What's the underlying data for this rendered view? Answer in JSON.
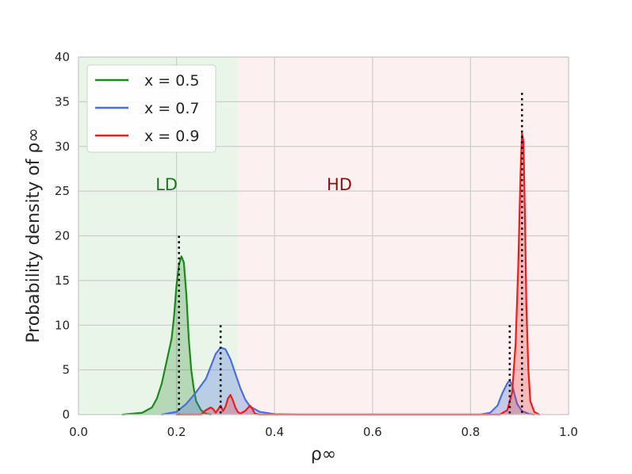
{
  "chart_data": {
    "type": "area",
    "title": "",
    "xlabel": "ρ∞",
    "ylabel": "Probability density of ρ∞",
    "xlim": [
      0.0,
      1.0
    ],
    "ylim": [
      0,
      40
    ],
    "xticks": [
      "0.0",
      "0.2",
      "0.4",
      "0.6",
      "0.8",
      "1.0"
    ],
    "yticks": [
      "0",
      "5",
      "10",
      "15",
      "20",
      "25",
      "30",
      "35",
      "40"
    ],
    "grid": true,
    "legend_position": "top-left",
    "regions": [
      {
        "label": "LD",
        "x_range": [
          0.0,
          0.325
        ],
        "color": "#eaf5ea",
        "label_color": "#1a7a1a"
      },
      {
        "label": "HD",
        "x_range": [
          0.325,
          1.0
        ],
        "color": "#fdf0f0",
        "label_color": "#8b1010"
      }
    ],
    "series": [
      {
        "name": "x = 0.5",
        "color": "#1a8a1a",
        "fill": "rgba(46,139,46,0.28)",
        "points": [
          [
            0.09,
            0
          ],
          [
            0.13,
            0.2
          ],
          [
            0.15,
            0.8
          ],
          [
            0.16,
            1.8
          ],
          [
            0.17,
            3.5
          ],
          [
            0.18,
            6.0
          ],
          [
            0.19,
            8.5
          ],
          [
            0.195,
            11
          ],
          [
            0.2,
            14.5
          ],
          [
            0.205,
            16.8
          ],
          [
            0.21,
            17.7
          ],
          [
            0.215,
            17.0
          ],
          [
            0.22,
            13.5
          ],
          [
            0.225,
            8.5
          ],
          [
            0.23,
            5.0
          ],
          [
            0.235,
            3.0
          ],
          [
            0.24,
            1.5
          ],
          [
            0.25,
            0.5
          ],
          [
            0.26,
            0.1
          ],
          [
            0.27,
            0
          ]
        ]
      },
      {
        "name": "x = 0.7",
        "color": "#4a6fdc",
        "fill": "rgba(74,111,220,0.30)",
        "points": [
          [
            0.17,
            0
          ],
          [
            0.2,
            0.3
          ],
          [
            0.22,
            1.2
          ],
          [
            0.24,
            2.5
          ],
          [
            0.26,
            4.0
          ],
          [
            0.27,
            5.4
          ],
          [
            0.28,
            6.8
          ],
          [
            0.29,
            7.5
          ],
          [
            0.3,
            7.3
          ],
          [
            0.31,
            6.2
          ],
          [
            0.32,
            4.6
          ],
          [
            0.33,
            3.0
          ],
          [
            0.34,
            1.7
          ],
          [
            0.35,
            0.9
          ],
          [
            0.37,
            0.3
          ],
          [
            0.4,
            0.05
          ],
          [
            0.45,
            0
          ],
          [
            0.82,
            0
          ],
          [
            0.84,
            0.2
          ],
          [
            0.855,
            1.0
          ],
          [
            0.865,
            2.4
          ],
          [
            0.875,
            3.5
          ],
          [
            0.88,
            3.8
          ],
          [
            0.885,
            3.3
          ],
          [
            0.89,
            2.2
          ],
          [
            0.895,
            1.2
          ],
          [
            0.905,
            0.4
          ],
          [
            0.92,
            0.05
          ],
          [
            0.93,
            0
          ]
        ]
      },
      {
        "name": "x = 0.9",
        "color": "#ee1c1c",
        "fill": "rgba(238,50,50,0.28)",
        "points": [
          [
            0.2,
            0
          ],
          [
            0.25,
            0
          ],
          [
            0.26,
            0.5
          ],
          [
            0.27,
            0.8
          ],
          [
            0.275,
            0.6
          ],
          [
            0.28,
            0.2
          ],
          [
            0.285,
            0.6
          ],
          [
            0.29,
            1.0
          ],
          [
            0.295,
            0.4
          ],
          [
            0.3,
            0.9
          ],
          [
            0.305,
            1.8
          ],
          [
            0.31,
            2.2
          ],
          [
            0.315,
            1.6
          ],
          [
            0.32,
            0.8
          ],
          [
            0.325,
            0.3
          ],
          [
            0.33,
            0.1
          ],
          [
            0.34,
            0.4
          ],
          [
            0.35,
            1.0
          ],
          [
            0.355,
            0.6
          ],
          [
            0.36,
            0.1
          ],
          [
            0.37,
            0
          ],
          [
            0.86,
            0
          ],
          [
            0.875,
            0.5
          ],
          [
            0.885,
            2.5
          ],
          [
            0.892,
            8.0
          ],
          [
            0.897,
            16.0
          ],
          [
            0.902,
            27.0
          ],
          [
            0.905,
            31.5
          ],
          [
            0.908,
            30.5
          ],
          [
            0.911,
            22.0
          ],
          [
            0.914,
            12.0
          ],
          [
            0.918,
            5.0
          ],
          [
            0.922,
            1.5
          ],
          [
            0.93,
            0.3
          ],
          [
            0.94,
            0
          ]
        ]
      }
    ],
    "reference_lines": [
      {
        "x": 0.205,
        "y_max": 20
      },
      {
        "x": 0.29,
        "y_max": 10
      },
      {
        "x": 0.88,
        "y_max": 10
      },
      {
        "x": 0.905,
        "y_max": 36
      }
    ]
  }
}
